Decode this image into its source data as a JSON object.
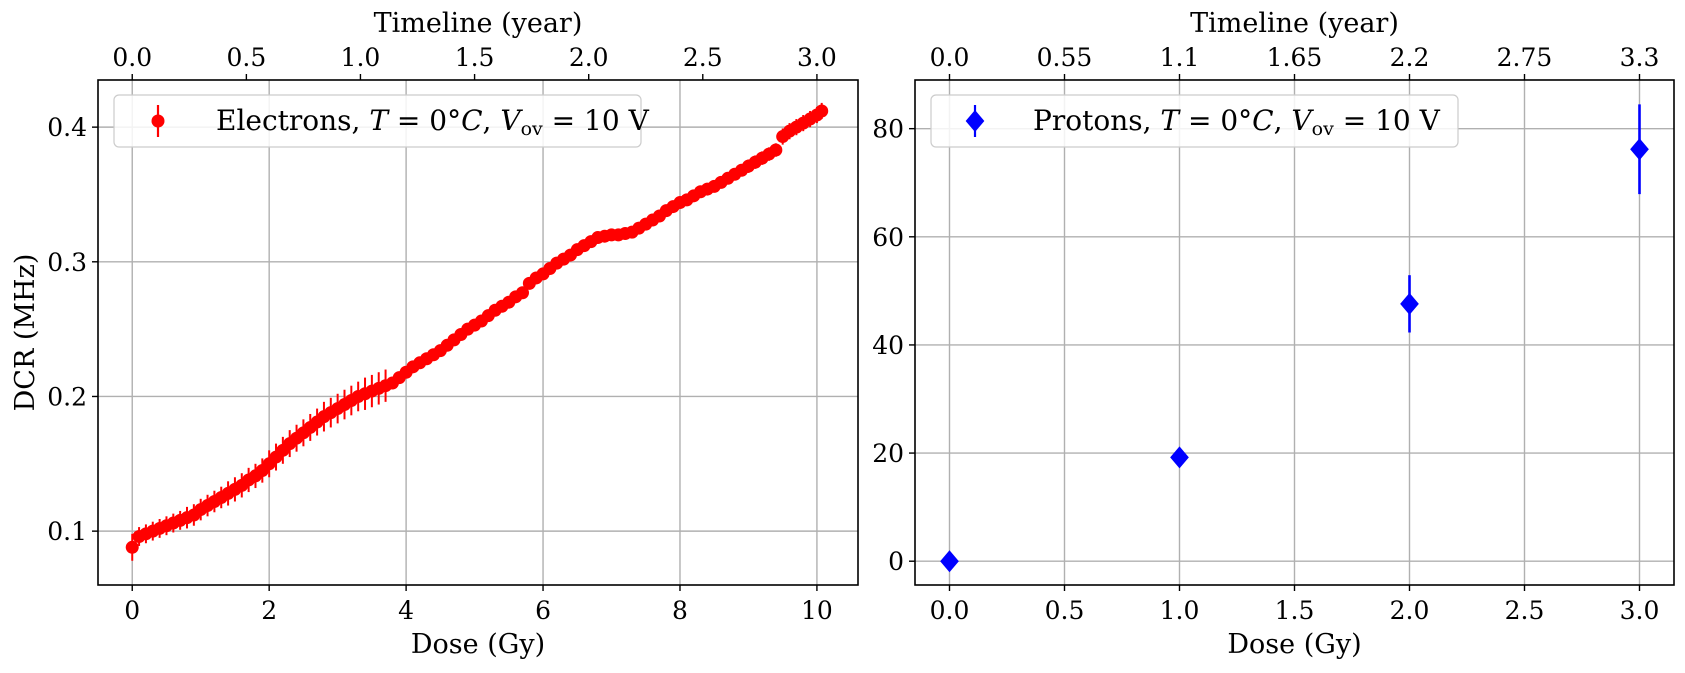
{
  "chart_data": [
    {
      "type": "scatter",
      "xlabel": "Dose (Gy)",
      "ylabel": "DCR (MHz)",
      "top_xlabel": "Timeline (year)",
      "xlim": [
        -0.5,
        10.6
      ],
      "ylim": [
        0.06,
        0.435
      ],
      "xticks": [
        0,
        2,
        4,
        6,
        8,
        10
      ],
      "xtick_labels": [
        "0",
        "2",
        "4",
        "6",
        "8",
        "10"
      ],
      "yticks": [
        0.1,
        0.2,
        0.3,
        0.4
      ],
      "ytick_labels": [
        "0.1",
        "0.2",
        "0.3",
        "0.4"
      ],
      "top_xticks": [
        0.0,
        1.667,
        3.333,
        5.0,
        6.667,
        8.333,
        10.0
      ],
      "top_xtick_labels": [
        "0.0",
        "0.5",
        "1.0",
        "1.5",
        "2.0",
        "2.5",
        "3.0"
      ],
      "grid": true,
      "legend_position": "top-left",
      "color": "#ff0000",
      "marker": "circle",
      "series": [
        {
          "name": "Electrons, T = 0°C, V_ov = 10 V",
          "legend_main": "Electrons, ",
          "legend_T": "T",
          "legend_eq1": " = 0°",
          "legend_C": "C",
          "legend_comma": ", ",
          "legend_V": "V",
          "legend_sub": "ov",
          "legend_eq2": " = 10 V",
          "x": [
            0,
            0.1,
            0.2,
            0.3,
            0.4,
            0.5,
            0.6,
            0.7,
            0.8,
            0.9,
            1.0,
            1.1,
            1.2,
            1.3,
            1.4,
            1.5,
            1.6,
            1.7,
            1.8,
            1.9,
            2.0,
            2.1,
            2.2,
            2.3,
            2.4,
            2.5,
            2.6,
            2.7,
            2.8,
            2.9,
            3.0,
            3.1,
            3.2,
            3.3,
            3.4,
            3.5,
            3.6,
            3.7,
            3.8,
            3.9,
            4.0,
            4.1,
            4.2,
            4.3,
            4.4,
            4.5,
            4.6,
            4.7,
            4.8,
            4.9,
            5.0,
            5.1,
            5.2,
            5.3,
            5.4,
            5.5,
            5.6,
            5.7,
            5.8,
            5.9,
            6.0,
            6.1,
            6.2,
            6.3,
            6.4,
            6.5,
            6.6,
            6.7,
            6.8,
            6.9,
            7.0,
            7.1,
            7.2,
            7.3,
            7.4,
            7.5,
            7.6,
            7.7,
            7.8,
            7.9,
            8.0,
            8.1,
            8.2,
            8.3,
            8.4,
            8.5,
            8.6,
            8.7,
            8.8,
            8.9,
            9.0,
            9.1,
            9.2,
            9.3,
            9.4,
            9.5,
            9.6,
            9.7,
            9.8,
            9.9,
            10.0,
            10.07
          ],
          "y": [
            0.088,
            0.096,
            0.098,
            0.1,
            0.102,
            0.104,
            0.106,
            0.108,
            0.11,
            0.112,
            0.116,
            0.119,
            0.122,
            0.125,
            0.128,
            0.131,
            0.134,
            0.138,
            0.141,
            0.145,
            0.15,
            0.155,
            0.16,
            0.165,
            0.169,
            0.173,
            0.177,
            0.181,
            0.185,
            0.188,
            0.191,
            0.194,
            0.197,
            0.2,
            0.202,
            0.204,
            0.206,
            0.208,
            0.21,
            0.214,
            0.218,
            0.222,
            0.225,
            0.228,
            0.231,
            0.234,
            0.238,
            0.242,
            0.246,
            0.25,
            0.253,
            0.256,
            0.26,
            0.264,
            0.267,
            0.27,
            0.274,
            0.277,
            0.284,
            0.288,
            0.291,
            0.295,
            0.299,
            0.302,
            0.305,
            0.309,
            0.312,
            0.315,
            0.318,
            0.319,
            0.32,
            0.32,
            0.321,
            0.322,
            0.325,
            0.328,
            0.331,
            0.334,
            0.338,
            0.341,
            0.344,
            0.346,
            0.349,
            0.352,
            0.354,
            0.356,
            0.359,
            0.362,
            0.365,
            0.368,
            0.371,
            0.374,
            0.377,
            0.38,
            0.383,
            0.393,
            0.397,
            0.4,
            0.403,
            0.406,
            0.409,
            0.412
          ],
          "yerr": [
            0.01,
            0.007,
            0.007,
            0.007,
            0.007,
            0.007,
            0.007,
            0.007,
            0.008,
            0.008,
            0.008,
            0.008,
            0.008,
            0.008,
            0.009,
            0.009,
            0.009,
            0.009,
            0.009,
            0.009,
            0.01,
            0.01,
            0.01,
            0.01,
            0.01,
            0.01,
            0.01,
            0.01,
            0.011,
            0.011,
            0.011,
            0.011,
            0.011,
            0.011,
            0.012,
            0.012,
            0.012,
            0.012,
            0.004,
            0.004,
            0.004,
            0.004,
            0.004,
            0.004,
            0.004,
            0.004,
            0.004,
            0.004,
            0.004,
            0.004,
            0.004,
            0.004,
            0.004,
            0.004,
            0.004,
            0.004,
            0.004,
            0.004,
            0.004,
            0.004,
            0.004,
            0.004,
            0.004,
            0.004,
            0.004,
            0.004,
            0.004,
            0.004,
            0.004,
            0.004,
            0.004,
            0.004,
            0.004,
            0.004,
            0.004,
            0.004,
            0.004,
            0.004,
            0.004,
            0.004,
            0.004,
            0.004,
            0.004,
            0.004,
            0.004,
            0.004,
            0.004,
            0.004,
            0.004,
            0.004,
            0.005,
            0.005,
            0.005,
            0.005,
            0.005,
            0.006,
            0.006,
            0.006,
            0.006,
            0.006,
            0.006,
            0.006
          ]
        }
      ]
    },
    {
      "type": "scatter",
      "xlabel": "Dose (Gy)",
      "ylabel": "",
      "top_xlabel": "Timeline (year)",
      "xlim": [
        -0.15,
        3.15
      ],
      "ylim": [
        -4.4,
        89
      ],
      "xticks": [
        0.0,
        0.5,
        1.0,
        1.5,
        2.0,
        2.5,
        3.0
      ],
      "xtick_labels": [
        "0.0",
        "0.5",
        "1.0",
        "1.5",
        "2.0",
        "2.5",
        "3.0"
      ],
      "yticks": [
        0,
        20,
        40,
        60,
        80
      ],
      "ytick_labels": [
        "0",
        "20",
        "40",
        "60",
        "80"
      ],
      "top_xticks": [
        0.0,
        0.5,
        1.0,
        1.5,
        2.0,
        2.5,
        3.0
      ],
      "top_xtick_labels": [
        "0.0",
        "0.55",
        "1.1",
        "1.65",
        "2.2",
        "2.75",
        "3.3"
      ],
      "grid": true,
      "legend_position": "top-left",
      "color": "#0000ff",
      "marker": "diamond",
      "series": [
        {
          "name": "Protons, T = 0°C, V_ov = 10 V",
          "legend_main": "Protons, ",
          "legend_T": "T",
          "legend_eq1": " = 0°",
          "legend_C": "C",
          "legend_comma": ", ",
          "legend_V": "V",
          "legend_sub": "ov",
          "legend_eq2": " = 10 V",
          "x": [
            0,
            1,
            2,
            3
          ],
          "y": [
            0,
            19.2,
            47.6,
            76.2
          ],
          "yerr": [
            0.3,
            0.8,
            5.3,
            8.3
          ]
        }
      ]
    }
  ]
}
